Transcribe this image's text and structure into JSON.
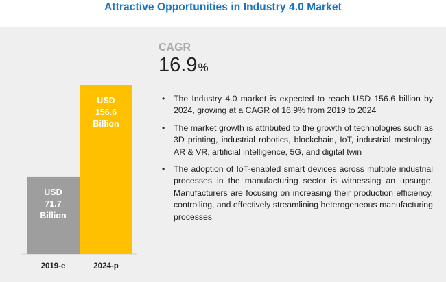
{
  "title": "Attractive Opportunities in Industry 4.0 Market",
  "cagr": {
    "label": "CAGR",
    "value": "16.9",
    "unit": "%"
  },
  "bullets": [
    "The Industry 4.0 market is expected to reach USD 156.6 billion by 2024, growing at a CAGR of 16.9% from 2019 to 2024",
    "The market growth is attributed to the growth of technologies such as 3D printing, industrial robotics, blockchain, IoT, industrial metrology, AR & VR, artificial intelligence, 5G, and digital twin",
    "The adoption of IoT-enabled smart devices across multiple industrial processes in the manufacturing sector is witnessing an upsurge. Manufacturers are focusing on increasing their production efficiency, controlling, and effectively streamlining heterogeneous manufacturing processes"
  ],
  "colors": {
    "title": "#1c73bd",
    "bar_2019": "#9e9e9e",
    "bar_2024": "#ffc000",
    "panel": "#efefef"
  },
  "chart_data": {
    "type": "bar",
    "categories": [
      "2019-e",
      "2024-p"
    ],
    "values": [
      71.7,
      156.6
    ],
    "bar_labels": [
      [
        "USD",
        "71.7",
        "Billion"
      ],
      [
        "USD",
        "156.6",
        "Billion"
      ]
    ],
    "bar_colors": [
      "#9e9e9e",
      "#ffc000"
    ],
    "title": "",
    "xlabel": "",
    "ylabel": "",
    "ylim": [
      0,
      156.6
    ],
    "grid": false
  }
}
